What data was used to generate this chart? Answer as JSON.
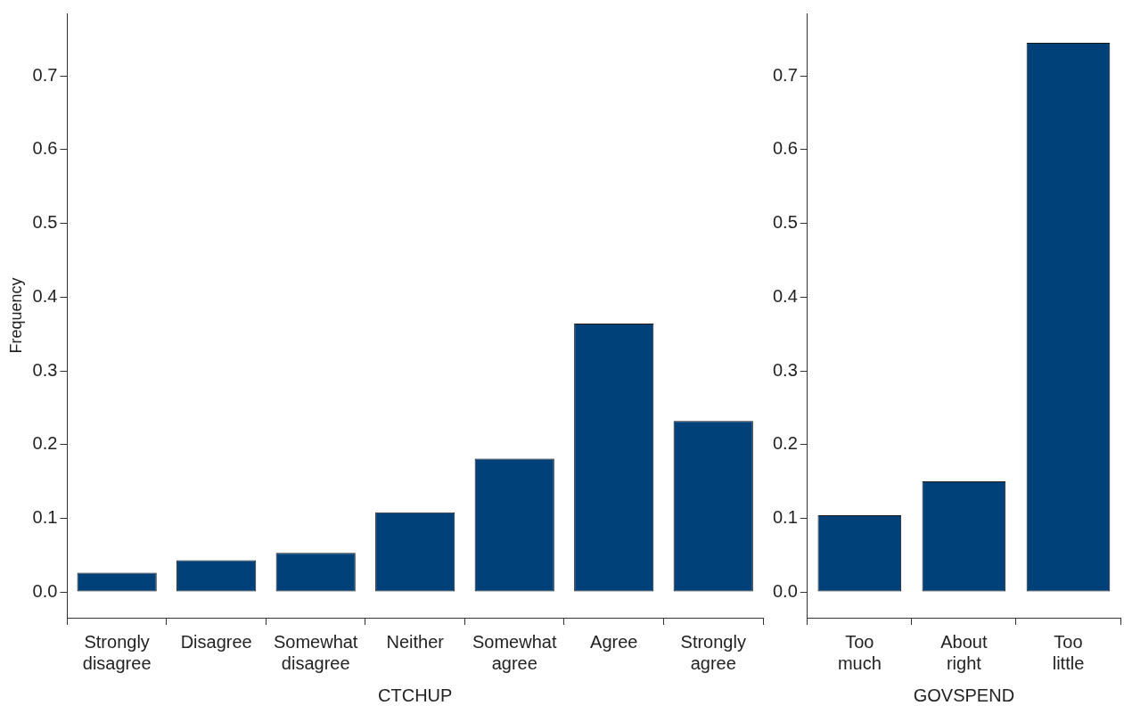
{
  "chart_data": [
    {
      "type": "bar",
      "xlabel": "CTCHUP",
      "ylabel": "Frequency",
      "categories": [
        "Strongly disagree",
        "Disagree",
        "Somewhat disagree",
        "Neither",
        "Somewhat agree",
        "Agree",
        "Strongly agree"
      ],
      "values": [
        0.026,
        0.043,
        0.053,
        0.108,
        0.181,
        0.364,
        0.232
      ],
      "color": "#01417a",
      "ylim": [
        -0.035,
        0.785
      ],
      "yticks": [
        {
          "value": 0,
          "label": "0.0"
        },
        0.1,
        0.2,
        0.3,
        0.4,
        0.5,
        0.6,
        0.7
      ],
      "grid": false,
      "legend": false
    },
    {
      "type": "bar",
      "xlabel": "GOVSPEND",
      "categories": [
        "Too much",
        "About right",
        "Too little"
      ],
      "values": [
        0.104,
        0.15,
        0.745
      ],
      "color": "#01417a",
      "ylim": [
        -0.035,
        0.785
      ],
      "yticks": [
        {
          "value": 0,
          "label": "0.0"
        },
        0.1,
        0.2,
        0.3,
        0.4,
        0.5,
        0.6,
        0.7
      ],
      "grid": false,
      "legend": false
    }
  ]
}
